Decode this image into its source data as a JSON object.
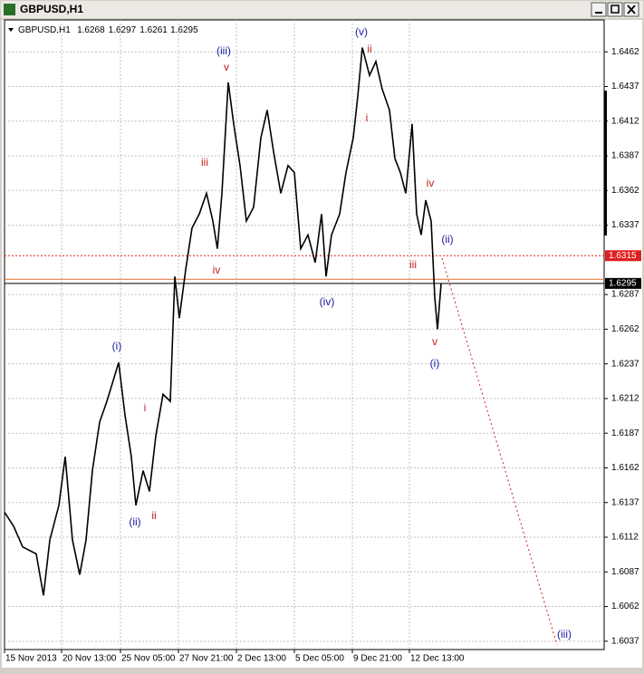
{
  "window_title": "GBPUSD,H1",
  "chart_data": {
    "type": "line",
    "header": {
      "symbol": "GBPUSD,H1",
      "ohlc": [
        1.6268,
        1.6297,
        1.6261,
        1.6295
      ]
    },
    "xlim": [
      0,
      662
    ],
    "xticks": [
      {
        "value": 0,
        "label": "15 Nov 2013"
      },
      {
        "value": 63,
        "label": "20 Nov 13:00"
      },
      {
        "value": 128,
        "label": "25 Nov 05:00"
      },
      {
        "value": 192,
        "label": "27 Nov 21:00"
      },
      {
        "value": 256,
        "label": "2 Dec 13:00"
      },
      {
        "value": 320,
        "label": "5 Dec 05:00"
      },
      {
        "value": 384,
        "label": "9 Dec 21:00"
      },
      {
        "value": 447,
        "label": "12 Dec 13:00"
      }
    ],
    "ylim": [
      1.6031,
      1.6485
    ],
    "yticks": [
      1.6037,
      1.6062,
      1.6087,
      1.6112,
      1.6137,
      1.6162,
      1.6187,
      1.6212,
      1.6237,
      1.6262,
      1.6287,
      1.6337,
      1.6362,
      1.6387,
      1.6412,
      1.6437,
      1.6462
    ],
    "grid": true,
    "series": [
      {
        "color": "#000000",
        "x": [
          0,
          10,
          20,
          35,
          43,
          50,
          60,
          67,
          75,
          83,
          90,
          97,
          105,
          113,
          120,
          126,
          133,
          140,
          145,
          153,
          160,
          167,
          175,
          183,
          188,
          193,
          200,
          207,
          215,
          223,
          230,
          235,
          240,
          247,
          253,
          260,
          267,
          275,
          283,
          290,
          297,
          305,
          313,
          320,
          327,
          335,
          343,
          350,
          355,
          361,
          370,
          377,
          385,
          390,
          395,
          403,
          410,
          417,
          425,
          431,
          437,
          443,
          450,
          455,
          460,
          465,
          471,
          475,
          478,
          482
        ],
        "values": [
          1.613,
          1.612,
          1.6105,
          1.61,
          1.607,
          1.611,
          1.6135,
          1.617,
          1.611,
          1.6085,
          1.611,
          1.616,
          1.6195,
          1.621,
          1.6225,
          1.6238,
          1.62,
          1.617,
          1.6135,
          1.616,
          1.6145,
          1.6185,
          1.6215,
          1.621,
          1.63,
          1.627,
          1.6305,
          1.6335,
          1.6345,
          1.636,
          1.634,
          1.632,
          1.636,
          1.644,
          1.641,
          1.638,
          1.634,
          1.635,
          1.64,
          1.642,
          1.639,
          1.636,
          1.638,
          1.6375,
          1.632,
          1.633,
          1.631,
          1.6345,
          1.63,
          1.633,
          1.6345,
          1.6375,
          1.64,
          1.643,
          1.6465,
          1.6445,
          1.6455,
          1.6435,
          1.642,
          1.6385,
          1.6375,
          1.636,
          1.641,
          1.6345,
          1.633,
          1.6355,
          1.634,
          1.6285,
          1.6262,
          1.6295
        ]
      }
    ],
    "levels": [
      {
        "value": 1.6315,
        "color": "#e02020",
        "dotted": true,
        "labeled": true
      },
      {
        "value": 1.6298,
        "color": "#e07030",
        "dotted": false,
        "labeled": false
      },
      {
        "value": 1.6295,
        "color": "#000000",
        "dotted": false,
        "labeled": true
      }
    ],
    "annotations": [
      "(iii)",
      "v",
      "iii",
      "iv",
      "(v)",
      "ii",
      "i",
      "(iv)",
      "iv",
      "(ii)",
      "iii",
      "v",
      "(i)",
      "(i)",
      "i",
      "(ii)",
      "ii",
      "(iii)"
    ],
    "annotation_colors": [
      "#1a1aa0",
      "#c02020"
    ]
  }
}
